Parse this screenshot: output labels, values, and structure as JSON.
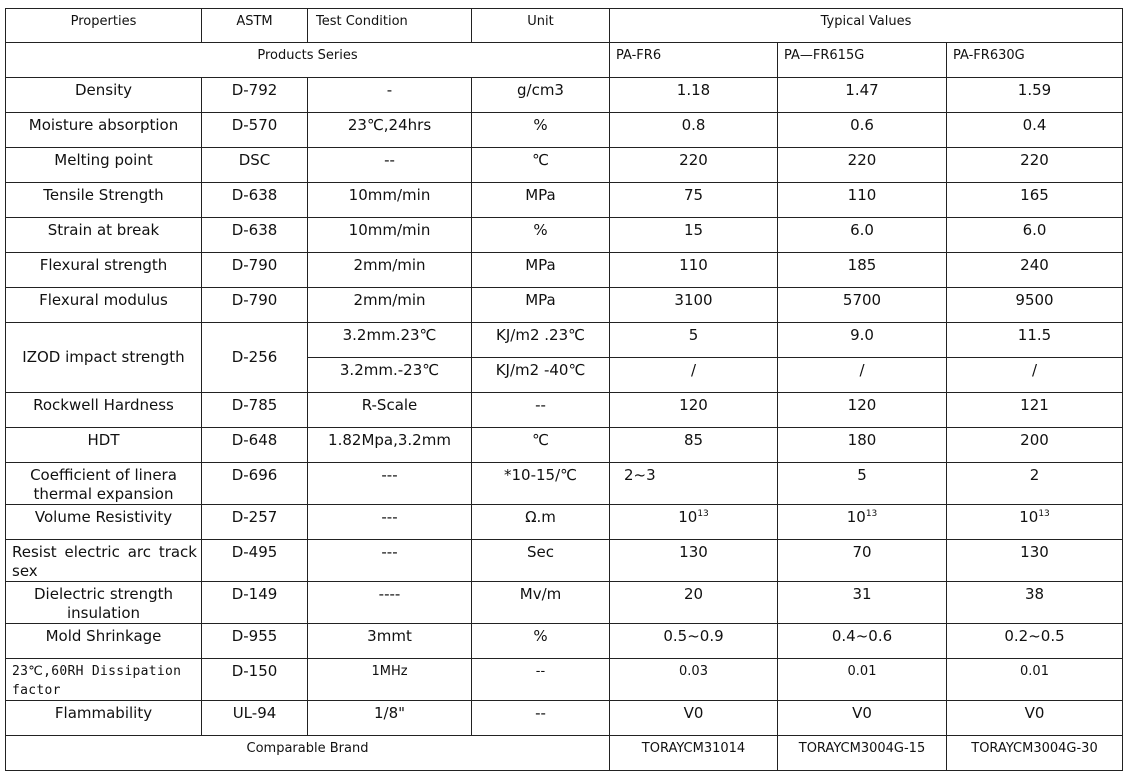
{
  "header": {
    "properties": "Properties",
    "astm": "ASTM",
    "test_condition": "Test Condition",
    "unit": "Unit",
    "typical_values": "Typical Values",
    "products_series": "Products Series",
    "products": [
      "PA-FR6",
      "PA—FR615G",
      "PA-FR630G"
    ]
  },
  "rows": [
    {
      "property": "Density",
      "astm": "D-792",
      "condition": "-",
      "unit": "g/cm3",
      "values": [
        "1.18",
        "1.47",
        "1.59"
      ]
    },
    {
      "property": "Moisture absorption",
      "astm": "D-570",
      "condition": "23℃,24hrs",
      "unit": "%",
      "values": [
        "0.8",
        "0.6",
        "0.4"
      ]
    },
    {
      "property": "Melting point",
      "astm": "DSC",
      "condition": "--",
      "unit": "℃",
      "values": [
        "220",
        "220",
        "220"
      ]
    },
    {
      "property": "Tensile Strength",
      "astm": "D-638",
      "condition": "10mm/min",
      "unit": "MPa",
      "values": [
        "75",
        "110",
        "165"
      ]
    },
    {
      "property": "Strain at break",
      "astm": "D-638",
      "condition": "10mm/min",
      "unit": "%",
      "values": [
        "15",
        "6.0",
        "6.0"
      ]
    },
    {
      "property": "Flexural strength",
      "astm": "D-790",
      "condition": "2mm/min",
      "unit": "MPa",
      "values": [
        "110",
        "185",
        "240"
      ]
    },
    {
      "property": "Flexural modulus",
      "astm": "D-790",
      "condition": "2mm/min",
      "unit": "MPa",
      "values": [
        "3100",
        "5700",
        "9500"
      ]
    }
  ],
  "izod": {
    "property": "IZOD impact strength",
    "astm": "D-256",
    "sub": [
      {
        "condition": "3.2mm.23℃",
        "unit": "KJ/m2 .23℃",
        "values": [
          "5",
          "9.0",
          "11.5"
        ]
      },
      {
        "condition": "3.2mm.-23℃",
        "unit": "KJ/m2 -40℃",
        "values": [
          "/",
          "/",
          "/"
        ]
      }
    ]
  },
  "rows2": [
    {
      "property": "Rockwell Hardness",
      "astm": "D-785",
      "condition": "R-Scale",
      "unit": "--",
      "values": [
        "120",
        "120",
        "121"
      ]
    },
    {
      "property": "HDT",
      "astm": "D-648",
      "condition": "1.82Mpa,3.2mm",
      "unit": "℃",
      "values": [
        "85",
        "180",
        "200"
      ]
    },
    {
      "property": "Coefficient of linera thermal expansion",
      "astm": "D-696",
      "condition": "---",
      "unit": "*10-15/℃",
      "values": [
        "2~3",
        "5",
        "2"
      ]
    },
    {
      "property": "Volume Resistivity",
      "astm": "D-257",
      "condition": "---",
      "unit": "Ω.m",
      "values": [
        "10",
        "10",
        "10"
      ],
      "exponent": "13"
    },
    {
      "property": "Resist electric arc  track sex",
      "astm": "D-495",
      "condition": "---",
      "unit": "Sec",
      "values": [
        "130",
        "70",
        "130"
      ]
    },
    {
      "property": "Dielectric strength insulation",
      "astm": "D-149",
      "condition": "----",
      "unit": "Mv/m",
      "values": [
        "20",
        "31",
        "38"
      ]
    },
    {
      "property": "Mold Shrinkage",
      "astm": "D-955",
      "condition": "3mmt",
      "unit": "%",
      "values": [
        "0.5~0.9",
        "0.4~0.6",
        "0.2~0.5"
      ]
    },
    {
      "property": "23℃,60RH  Dissipation factor",
      "astm": "D-150",
      "condition": "1MHz",
      "unit": "--",
      "values": [
        "0.03",
        "0.01",
        "0.01"
      ]
    },
    {
      "property": "Flammability",
      "astm": "UL-94",
      "condition": "1/8\"",
      "unit": "--",
      "values": [
        "V0",
        "V0",
        "V0"
      ]
    }
  ],
  "comparable": {
    "label": "Comparable Brand",
    "values": [
      "TORAYCM31014",
      "TORAYCM3004G-15",
      "TORAYCM3004G-30"
    ]
  }
}
